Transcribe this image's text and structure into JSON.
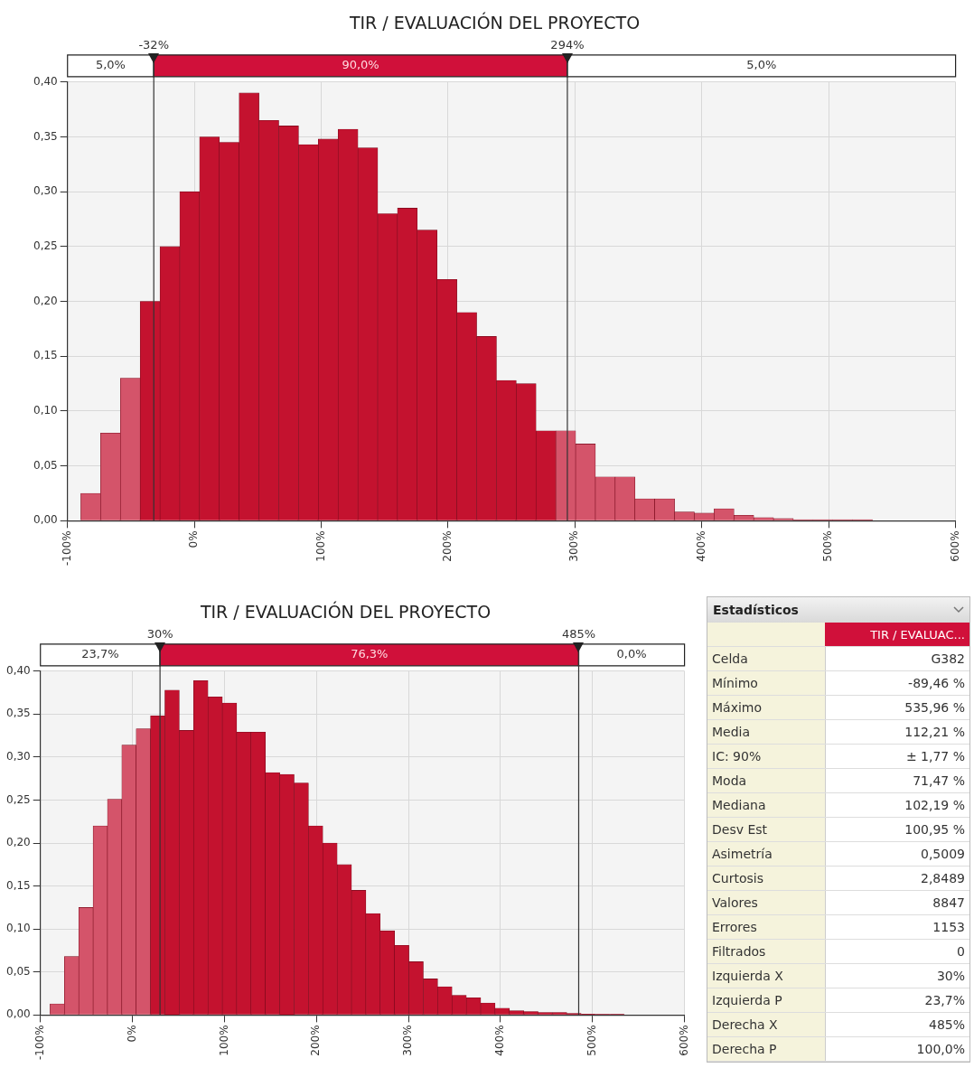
{
  "chart_data": [
    {
      "type": "histogram",
      "title": "TIR / EVALUACIÓN DEL PROYECTO",
      "bins": [
        -89.5,
        -73.9,
        -58.3,
        -42.7,
        -27.1,
        -11.5,
        4.1,
        19.7,
        35.3,
        50.9,
        66.5,
        82.1,
        97.7,
        113.3,
        128.9,
        144.5,
        160.1,
        175.7,
        191.3,
        206.9,
        222.5,
        238.1,
        253.7,
        269.3,
        284.9,
        300.5,
        316.1,
        331.7,
        347.3,
        362.9,
        378.5,
        394.1,
        409.7,
        425.3,
        440.9,
        456.5,
        472.1,
        487.7,
        503.3,
        518.9,
        534.5
      ],
      "values": [
        0.025,
        0.08,
        0.13,
        0.2,
        0.25,
        0.3,
        0.35,
        0.345,
        0.39,
        0.365,
        0.36,
        0.343,
        0.348,
        0.357,
        0.34,
        0.28,
        0.285,
        0.265,
        0.22,
        0.19,
        0.168,
        0.128,
        0.125,
        0.082,
        0.082,
        0.07,
        0.04,
        0.04,
        0.02,
        0.02,
        0.008,
        0.007,
        0.011,
        0.005,
        0.003,
        0.002,
        0.001,
        0.001,
        0.001,
        0.001
      ],
      "colors": [
        "#d4546a",
        "#d4546a",
        "#d4546a",
        "#c4122f",
        "#c4122f",
        "#c4122f",
        "#c4122f",
        "#c4122f",
        "#c4122f",
        "#c4122f",
        "#c4122f",
        "#c4122f",
        "#c4122f",
        "#c4122f",
        "#c4122f",
        "#c4122f",
        "#c4122f",
        "#c4122f",
        "#c4122f",
        "#c4122f",
        "#c4122f",
        "#c4122f",
        "#c4122f",
        "#c4122f",
        "#d4546a",
        "#d4546a",
        "#d4546a",
        "#d4546a",
        "#d4546a",
        "#d4546a",
        "#d4546a",
        "#d4546a",
        "#d4546a",
        "#d4546a",
        "#d4546a",
        "#d4546a",
        "#d4546a",
        "#d4546a",
        "#d4546a",
        "#d4546a"
      ],
      "xlim": [
        -100,
        600
      ],
      "xticks": [
        {
          "value": -100,
          "label": "-100%"
        },
        {
          "value": 0,
          "label": "0%"
        },
        {
          "value": 100,
          "label": "100%"
        },
        {
          "value": 200,
          "label": "200%"
        },
        {
          "value": 300,
          "label": "300%"
        },
        {
          "value": 400,
          "label": "400%"
        },
        {
          "value": 500,
          "label": "500%"
        },
        {
          "value": 600,
          "label": "600%"
        }
      ],
      "ylim": [
        0,
        0.4
      ],
      "yticks": [
        {
          "value": 0,
          "label": "0,00"
        },
        {
          "value": 0.05,
          "label": "0,05"
        },
        {
          "value": 0.1,
          "label": "0,10"
        },
        {
          "value": 0.15,
          "label": "0,15"
        },
        {
          "value": 0.2,
          "label": "0,20"
        },
        {
          "value": 0.25,
          "label": "0,25"
        },
        {
          "value": 0.3,
          "label": "0,30"
        },
        {
          "value": 0.35,
          "label": "0,35"
        },
        {
          "value": 0.4,
          "label": "0,40"
        }
      ],
      "grid": true,
      "ref_lines": [
        {
          "axis": "x",
          "value": -32,
          "label": "-32%"
        },
        {
          "axis": "x",
          "value": 294,
          "label": "294%"
        }
      ],
      "annotations": [
        "5,0%",
        "90,0%",
        "5,0%"
      ]
    },
    {
      "type": "histogram",
      "title": "TIR / EVALUACIÓN DEL PROYECTO",
      "bins": [
        -89.5,
        -73.9,
        -58.3,
        -42.7,
        -27.1,
        -11.5,
        4.1,
        19.7,
        35.3,
        50.9,
        66.5,
        82.1,
        97.7,
        113.3,
        128.9,
        144.5,
        160.1,
        175.7,
        191.3,
        206.9,
        222.5,
        238.1,
        253.7,
        269.3,
        284.9,
        300.5,
        316.1,
        331.7,
        347.3,
        362.9,
        378.5,
        394.1,
        409.7,
        425.3,
        440.9,
        456.5,
        472.1,
        487.7,
        503.3,
        518.9,
        534.5
      ],
      "values": [
        0.013,
        0.068,
        0.125,
        0.22,
        0.251,
        0.314,
        0.333,
        0.348,
        0.378,
        0.331,
        0.389,
        0.37,
        0.363,
        0.329,
        0.329,
        0.282,
        0.28,
        0.27,
        0.22,
        0.2,
        0.175,
        0.145,
        0.118,
        0.098,
        0.081,
        0.062,
        0.042,
        0.033,
        0.023,
        0.02,
        0.014,
        0.008,
        0.005,
        0.004,
        0.003,
        0.003,
        0.002,
        0.001,
        0.001,
        0.001
      ],
      "colors": [
        "#d4546a",
        "#d4546a",
        "#d4546a",
        "#d4546a",
        "#d4546a",
        "#d4546a",
        "#d4546a",
        "#c4122f",
        "#c4122f",
        "#c4122f",
        "#c4122f",
        "#c4122f",
        "#c4122f",
        "#c4122f",
        "#c4122f",
        "#c4122f",
        "#c4122f",
        "#c4122f",
        "#c4122f",
        "#c4122f",
        "#c4122f",
        "#c4122f",
        "#c4122f",
        "#c4122f",
        "#c4122f",
        "#c4122f",
        "#c4122f",
        "#c4122f",
        "#c4122f",
        "#c4122f",
        "#c4122f",
        "#c4122f",
        "#c4122f",
        "#c4122f",
        "#c4122f",
        "#c4122f",
        "#c4122f",
        "#c4122f",
        "#d4546a",
        "#d4546a"
      ],
      "xlim": [
        -100,
        600
      ],
      "xticks": [
        {
          "value": -100,
          "label": "-100%"
        },
        {
          "value": 0,
          "label": "0%"
        },
        {
          "value": 100,
          "label": "100%"
        },
        {
          "value": 200,
          "label": "200%"
        },
        {
          "value": 300,
          "label": "300%"
        },
        {
          "value": 400,
          "label": "400%"
        },
        {
          "value": 500,
          "label": "500%"
        },
        {
          "value": 600,
          "label": "600%"
        }
      ],
      "ylim": [
        0,
        0.4
      ],
      "yticks": [
        {
          "value": 0,
          "label": "0,00"
        },
        {
          "value": 0.05,
          "label": "0,05"
        },
        {
          "value": 0.1,
          "label": "0,10"
        },
        {
          "value": 0.15,
          "label": "0,15"
        },
        {
          "value": 0.2,
          "label": "0,20"
        },
        {
          "value": 0.25,
          "label": "0,25"
        },
        {
          "value": 0.3,
          "label": "0,30"
        },
        {
          "value": 0.35,
          "label": "0,35"
        },
        {
          "value": 0.4,
          "label": "0,40"
        }
      ],
      "grid": true,
      "ref_lines": [
        {
          "axis": "x",
          "value": 30,
          "label": "30%"
        },
        {
          "axis": "x",
          "value": 485,
          "label": "485%"
        }
      ],
      "annotations": [
        "23,7%",
        "76,3%",
        "0,0%"
      ]
    },
    {
      "type": "other",
      "title": "Estadísticos",
      "annotations": [
        "TIR / EVALUAC...",
        "Celda",
        "G382",
        "Mínimo",
        "-89,46 %",
        "Máximo",
        "535,96 %",
        "Media",
        "112,21 %",
        "IC: 90%",
        "± 1,77 %",
        "Moda",
        "71,47 %",
        "Mediana",
        "102,19 %",
        "Desv Est",
        "100,95 %",
        "Asimetría",
        "0,5009",
        "Curtosis",
        "2,8489",
        "Valores",
        "8847",
        "Errores",
        "1153",
        "Filtrados",
        "0",
        "Izquierda X",
        "30%",
        "Izquierda P",
        "23,7%",
        "Derecha X",
        "485%",
        "Derecha P",
        "100,0%"
      ]
    }
  ]
}
